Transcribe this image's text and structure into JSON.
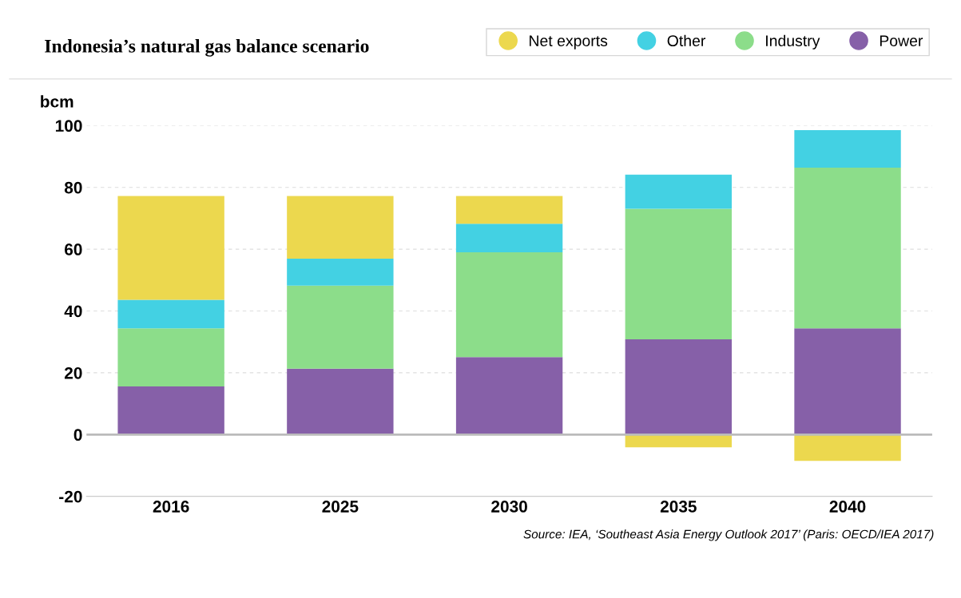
{
  "chart_data": {
    "type": "bar",
    "title": "Indonesia’s natural gas balance scenario",
    "ylabel": "bcm",
    "categories": [
      "2016",
      "2025",
      "2030",
      "2035",
      "2040"
    ],
    "stacked": true,
    "series": [
      {
        "name": "Power",
        "color": "#8660a8",
        "values": [
          15.6,
          21.3,
          25.1,
          30.8,
          34.4
        ]
      },
      {
        "name": "Industry",
        "color": "#8cdd8a",
        "values": [
          18.8,
          26.9,
          33.9,
          42.3,
          52.0
        ]
      },
      {
        "name": "Other",
        "color": "#43d1e3",
        "values": [
          9.2,
          8.7,
          9.2,
          11.0,
          12.1
        ]
      },
      {
        "name": "Net exports",
        "color": "#ecd84e",
        "values": [
          33.6,
          20.3,
          9.0,
          -4.1,
          -8.5
        ]
      }
    ],
    "ylim": [
      -20,
      100
    ],
    "yticks": [
      {
        "value": -20,
        "label": "-20"
      },
      0,
      20,
      40,
      60,
      80,
      100
    ],
    "grid": "y",
    "legend": "top right",
    "annotations": [
      "Source: IEA, ‘Southeast Asia Energy Outlook 2017’ (Paris: OECD/IEA 2017)"
    ]
  }
}
